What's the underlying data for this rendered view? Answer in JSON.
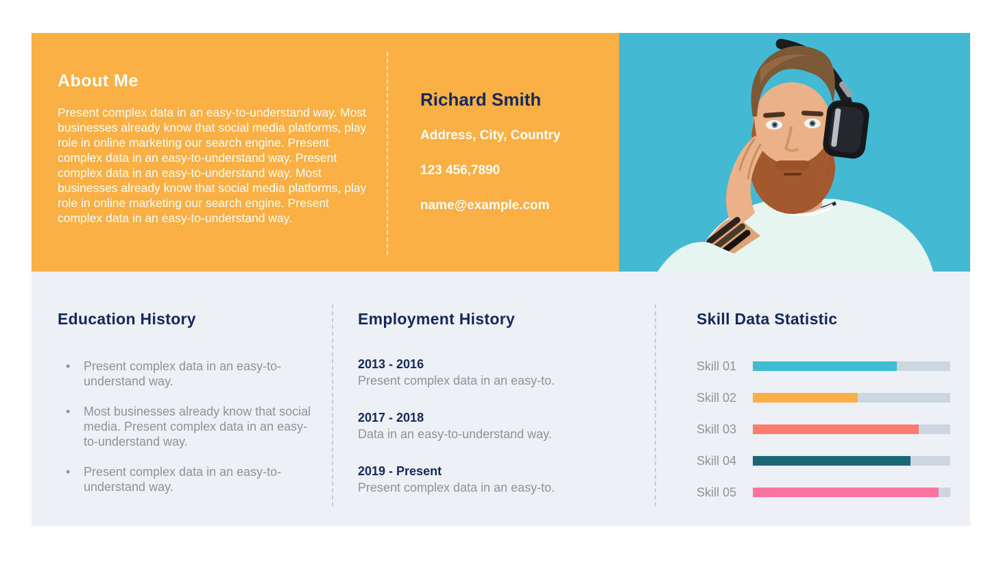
{
  "header": {
    "about": {
      "title": "About Me",
      "body": "Present complex data in an easy-to-understand way. Most businesses already know that social media platforms, play role in online marketing our search engine. Present complex data in an easy-to-understand way. Present complex data in an easy-to-understand way. Most businesses already know that social media platforms, play role in online marketing our search engine. Present complex data in an easy-to-understand way."
    },
    "contact": {
      "name": "Richard Smith",
      "address": "Address, City, Country",
      "phone": "123 456,7890",
      "email": "name@example.com"
    },
    "photo": {
      "description": "portrait of bearded man wearing headphones on turquoise background",
      "background_color": "#44B9D3"
    },
    "background_color": "#FAB044"
  },
  "education": {
    "title": "Education History",
    "items": [
      "Present complex data in an easy-to-understand way.",
      "Most businesses already know that social media. Present complex data in an easy-to-understand way.",
      "Present complex data in an easy-to-understand way."
    ]
  },
  "employment": {
    "title": "Employment History",
    "items": [
      {
        "period": "2013 - 2016",
        "description": "Present complex data in an easy-to."
      },
      {
        "period": "2017 - 2018",
        "description": "Data in an easy-to-understand way."
      },
      {
        "period": "2019 - Present",
        "description": "Present complex data in an easy-to."
      }
    ]
  },
  "skills": {
    "title": "Skill Data Statistic",
    "chart_data": {
      "type": "bar",
      "orientation": "horizontal",
      "categories": [
        "Skill 01",
        "Skill 02",
        "Skill 03",
        "Skill 04",
        "Skill 05"
      ],
      "values": [
        73,
        53,
        84,
        80,
        94
      ],
      "bar_colors": [
        "#3FBCD2",
        "#FAB044",
        "#F97C6F",
        "#196676",
        "#FA74A0"
      ],
      "track_color": "#CBD6DF",
      "xlim": [
        0,
        100
      ],
      "grid": false,
      "legend": false
    }
  },
  "colors": {
    "accent_orange": "#FAB044",
    "accent_turquoise": "#44B9D3",
    "navy_text": "#15275B",
    "gray_text": "#8C939D",
    "bottom_background": "#EDF1F5"
  }
}
